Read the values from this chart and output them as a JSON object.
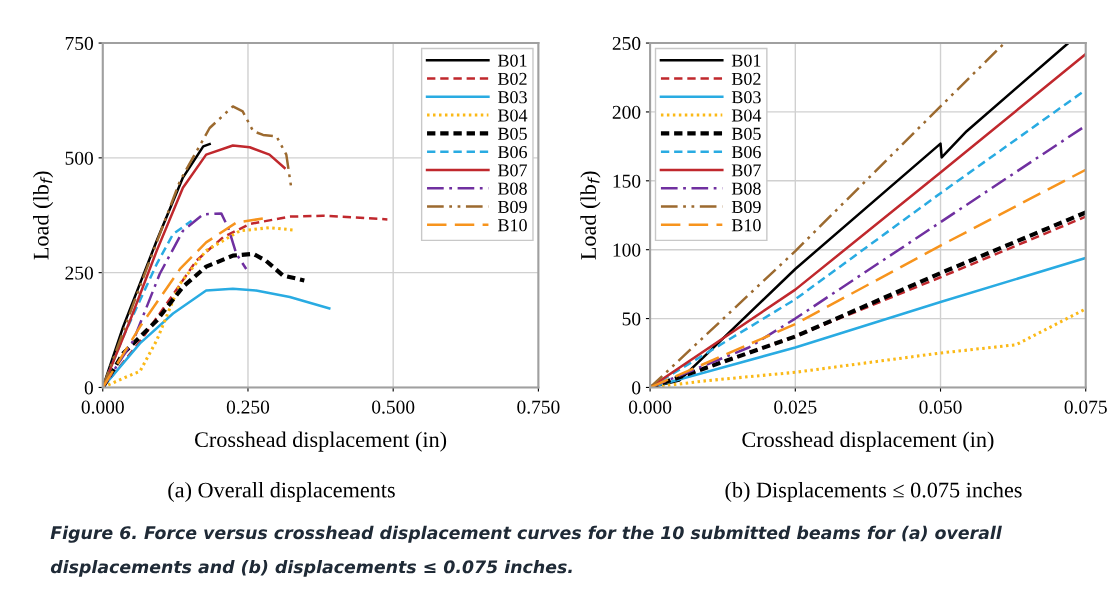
{
  "chart_data": [
    {
      "type": "line",
      "subtitle": "(a) Overall displacements",
      "xlabel": "Crosshead displacement (in)",
      "ylabel": "Load (lb$_{f}$)",
      "xlim": [
        0,
        0.75
      ],
      "ylim": [
        0,
        750
      ],
      "xticks": [
        {
          "value": 0,
          "label": "0.000"
        },
        {
          "value": 0.25,
          "label": "0.250"
        },
        {
          "value": 0.5,
          "label": "0.500"
        },
        {
          "value": 0.75,
          "label": "0.750"
        }
      ],
      "yticks": [
        0,
        250,
        500,
        750
      ],
      "grid": true,
      "legend": "top right",
      "annotations": [
        "Figure 6. Force versus crosshead displacement curves for the 10 submitted beams for (a) overall displacements and (b) displacements ≤ 0.075 inches."
      ],
      "series": [
        {
          "name": "B01",
          "color": "#000000",
          "line_style": "solid",
          "x": [
            0,
            0.035,
            0.093,
            0.138,
            0.173,
            0.184
          ],
          "values": [
            0,
            132,
            320,
            457,
            525,
            530
          ]
        },
        {
          "name": "B02",
          "color": "#c0282d",
          "line_style": "dashed",
          "x": [
            0,
            0.064,
            0.116,
            0.161,
            0.207,
            0.253,
            0.322,
            0.379,
            0.436,
            0.49
          ],
          "values": [
            0,
            100,
            193,
            276,
            327,
            356,
            372,
            374,
            370,
            366
          ]
        },
        {
          "name": "B03",
          "color": "#29abe2",
          "line_style": "solid",
          "x": [
            0,
            0.064,
            0.121,
            0.178,
            0.224,
            0.264,
            0.322,
            0.39
          ],
          "values": [
            0,
            96,
            161,
            211,
            215,
            211,
            197,
            172
          ]
        },
        {
          "name": "B04",
          "color": "#fbb917",
          "line_style": "dotted",
          "x": [
            0,
            0.035,
            0.064,
            0.093,
            0.133,
            0.178,
            0.236,
            0.287,
            0.327
          ],
          "values": [
            0,
            20,
            35,
            103,
            226,
            298,
            341,
            348,
            343
          ]
        },
        {
          "name": "B05",
          "color": "#000000",
          "line_style": "dashed",
          "x": [
            0,
            0.035,
            0.093,
            0.138,
            0.178,
            0.224,
            0.259,
            0.281,
            0.31,
            0.347
          ],
          "values": [
            0,
            74,
            146,
            219,
            263,
            287,
            291,
            276,
            244,
            233
          ]
        },
        {
          "name": "B06",
          "color": "#29abe2",
          "line_style": "dashed",
          "x": [
            0,
            0.035,
            0.093,
            0.121,
            0.153
          ],
          "values": [
            0,
            110,
            269,
            334,
            363
          ]
        },
        {
          "name": "B07",
          "color": "#c0282d",
          "line_style": "solid",
          "x": [
            0,
            0.047,
            0.093,
            0.138,
            0.178,
            0.224,
            0.253,
            0.287,
            0.313
          ],
          "values": [
            0,
            146,
            298,
            435,
            507,
            527,
            523,
            507,
            478
          ]
        },
        {
          "name": "B08",
          "color": "#7030a0",
          "line_style": "dashdot",
          "x": [
            0,
            0.053,
            0.098,
            0.138,
            0.173,
            0.204,
            0.216,
            0.23,
            0.247
          ],
          "values": [
            0,
            103,
            247,
            341,
            377,
            379,
            348,
            291,
            258
          ]
        },
        {
          "name": "B09",
          "color": "#9c6a2f",
          "line_style": "dashdotdot",
          "x": [
            0,
            0.053,
            0.133,
            0.184,
            0.224,
            0.241,
            0.259,
            0.276,
            0.299,
            0.316,
            0.324
          ],
          "values": [
            0,
            183,
            450,
            565,
            612,
            601,
            558,
            550,
            547,
            507,
            439
          ]
        },
        {
          "name": "B10",
          "color": "#f7941d",
          "line_style": "longdash",
          "x": [
            0,
            0.064,
            0.133,
            0.178,
            0.23,
            0.276
          ],
          "values": [
            0,
            132,
            258,
            316,
            359,
            368
          ]
        }
      ]
    },
    {
      "type": "line",
      "subtitle": "(b) Displacements ≤ 0.075 inches",
      "xlabel": "Crosshead displacement (in)",
      "ylabel": "Load (lb$_{f}$)",
      "xlim": [
        0,
        0.075
      ],
      "ylim": [
        0,
        250
      ],
      "xticks": [
        {
          "value": 0,
          "label": "0.000"
        },
        {
          "value": 0.025,
          "label": "0.025"
        },
        {
          "value": 0.05,
          "label": "0.050"
        },
        {
          "value": 0.075,
          "label": "0.075"
        }
      ],
      "yticks": [
        0,
        50,
        100,
        150,
        200,
        250
      ],
      "grid": true,
      "legend": "top left",
      "series": [
        {
          "name": "B01",
          "color": "#000000",
          "line_style": "solid",
          "x": [
            0,
            0.005,
            0.025,
            0.05,
            0.0502,
            0.0545,
            0.072
          ],
          "values": [
            0,
            5,
            86,
            177,
            167,
            186,
            250
          ]
        },
        {
          "name": "B02",
          "color": "#c0282d",
          "line_style": "dashed",
          "x": [
            0,
            0.025,
            0.05,
            0.075
          ],
          "values": [
            0,
            37,
            80,
            124
          ]
        },
        {
          "name": "B03",
          "color": "#29abe2",
          "line_style": "solid",
          "x": [
            0,
            0.025,
            0.05,
            0.075
          ],
          "values": [
            0,
            29,
            62,
            94
          ]
        },
        {
          "name": "B04",
          "color": "#fbb917",
          "line_style": "dotted",
          "x": [
            0,
            0.01,
            0.025,
            0.05,
            0.063,
            0.075
          ],
          "values": [
            0,
            5,
            11,
            25,
            31,
            57
          ]
        },
        {
          "name": "B05",
          "color": "#000000",
          "line_style": "dashed",
          "x": [
            0,
            0.025,
            0.05,
            0.075
          ],
          "values": [
            0,
            37,
            83,
            127
          ]
        },
        {
          "name": "B06",
          "color": "#29abe2",
          "line_style": "dashed",
          "x": [
            0,
            0.025,
            0.05,
            0.075
          ],
          "values": [
            0,
            64,
            141,
            216
          ]
        },
        {
          "name": "B07",
          "color": "#c0282d",
          "line_style": "solid",
          "x": [
            0,
            0.025,
            0.05,
            0.075
          ],
          "values": [
            0,
            71,
            156,
            242
          ]
        },
        {
          "name": "B08",
          "color": "#7030a0",
          "line_style": "dashdot",
          "x": [
            0,
            0.017,
            0.025,
            0.05,
            0.075
          ],
          "values": [
            0,
            29,
            50,
            120,
            190
          ]
        },
        {
          "name": "B09",
          "color": "#9c6a2f",
          "line_style": "dashdotdot",
          "x": [
            0,
            0.025,
            0.05,
            0.061
          ],
          "values": [
            0,
            99,
            204,
            250
          ]
        },
        {
          "name": "B10",
          "color": "#f7941d",
          "line_style": "longdash",
          "x": [
            0,
            0.025,
            0.05,
            0.075
          ],
          "values": [
            0,
            46,
            103,
            158
          ]
        }
      ]
    }
  ]
}
